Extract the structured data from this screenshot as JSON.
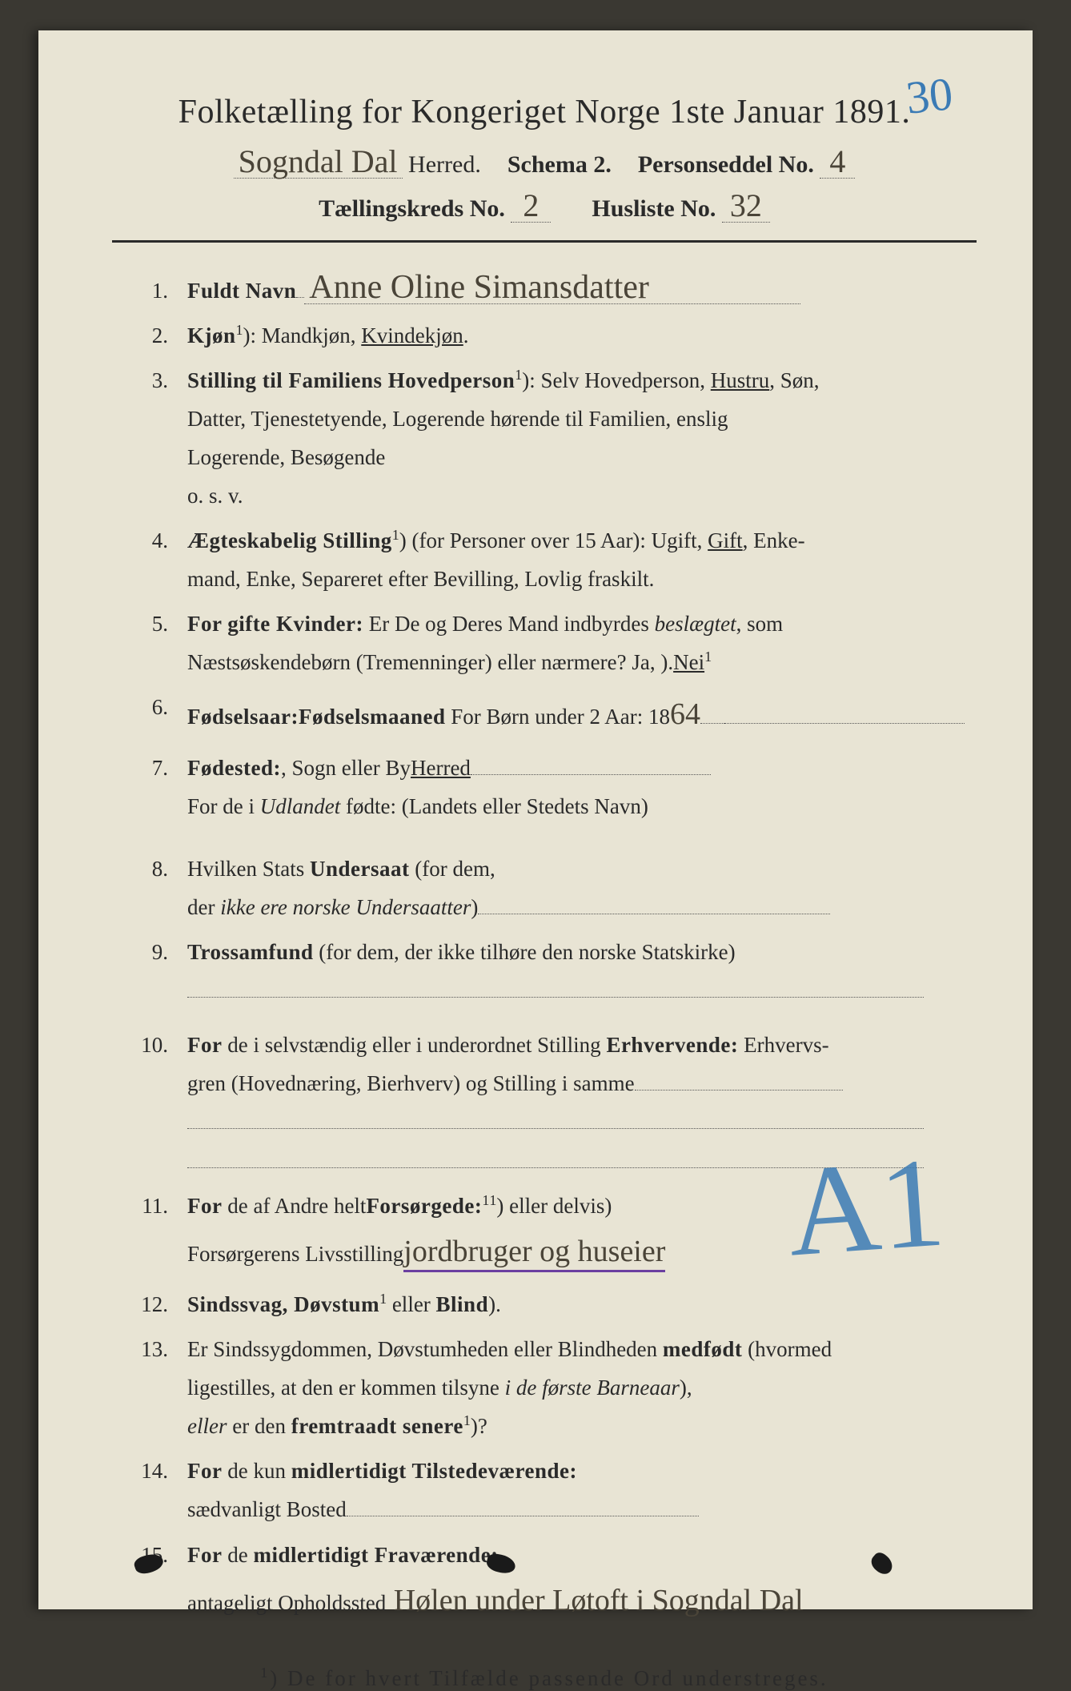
{
  "pageAnnotation": "30",
  "header": {
    "title": "Folketælling for Kongeriget Norge 1ste Januar 1891.",
    "herredName": "Sogndal Dal",
    "line2": {
      "herred": "Herred.",
      "schema": "Schema 2.",
      "personseddel": "Personseddel No.",
      "personseddelNo": "4"
    },
    "line3": {
      "kreds": "Tællingskreds No.",
      "kredsNo": "2",
      "husliste": "Husliste No.",
      "huslisteNo": "32"
    }
  },
  "items": [
    {
      "n": "1.",
      "label": "Fuldt Navn",
      "value": "Anne Oline Simansdatter"
    },
    {
      "n": "2.",
      "label": "Kjøn",
      "sup": "1",
      "tail": "): Mandkjøn, ",
      "underlined": "Kvindekjøn",
      "after": "."
    },
    {
      "n": "3.",
      "label": "Stilling til Familiens Hovedperson",
      "sup": "1",
      "tail": "): Selv Hovedperson, ",
      "underlined": "Hustru",
      "after": ", Søn,",
      "cont": [
        "Datter, Tjenestetyende, Logerende hørende til Familien, enslig",
        "Logerende, Besøgende",
        "o. s. v."
      ]
    },
    {
      "n": "4.",
      "label": "Ægteskabelig Stilling",
      "sup": "1",
      "tail": ") (for Personer over 15 Aar): Ugift, ",
      "underlined": "Gift",
      "after": ", Enke-",
      "cont": [
        "mand, Enke, Separeret efter Bevilling, Lovlig fraskilt."
      ]
    },
    {
      "n": "5.",
      "label_pre": "For ",
      "label": "gifte Kvinder:",
      "tail": " Er De og Deres Mand indbyrdes ",
      "italic": "beslægtet",
      "after": ", som",
      "cont_html": "Næstsøskendebørn (Tremenninger) eller nærmere?   Ja, ",
      "cont_under": "Nei",
      "cont_sup": "1",
      "cont_after": ")."
    },
    {
      "n": "6.",
      "label": "Fødselsaar:",
      "year_prefix": " 18",
      "year_hw": "64",
      "dotsA": true,
      "mid": "   For Børn under 2 Aar: ",
      "label2": "Fødselsmaaned",
      "trailingDots": true
    },
    {
      "n": "7.",
      "label": "Fødested:",
      "underlined": "Herred",
      "tail": ", Sogn eller By",
      "trailingDots": true,
      "cont_html": "For de i ",
      "cont_italic": "Udlandet",
      "cont_after": " fødte: (Landets eller Stedets Navn)"
    },
    {
      "n": "8.",
      "plain_pre": "Hvilken Stats ",
      "label": "Undersaat",
      "tail": "  (for dem,",
      "cont_html": "der ",
      "cont_italic": "ikke ere norske Undersaatter",
      "cont_after": ")",
      "cont_trailing_dots": true
    },
    {
      "n": "9.",
      "label": "Trossamfund",
      "tail": "  (for dem,  der  ikke  tilhøre  den  norske  Statskirke)",
      "trailingDotsBelow": true
    },
    {
      "n": "10.",
      "label_pre": "For ",
      "plain": "de i selvstændig eller i underordnet Stilling ",
      "label": "Erhvervende:",
      "tail": " Erhvervs-",
      "cont": [
        "gren (Hovednæring, Bierhverv) og Stilling i samme"
      ],
      "cont_trailing_dots": true,
      "extraDotsLines": 2
    },
    {
      "n": "11.",
      "label_pre": "For ",
      "plain": "de af Andre helt",
      "sup": "1",
      "mid": ") eller delvis",
      "sup2": "1",
      "tail": ") ",
      "label": "Forsørgede:",
      "cont_label": "Forsørgerens Livsstilling",
      "cont_hw": "jordbruger og huseier",
      "purple": true
    },
    {
      "n": "12.",
      "label": "Sindssvag, Døvstum",
      "plain_mid": " eller ",
      "label2": "Blind",
      "sup": "1",
      "after": ")."
    },
    {
      "n": "13.",
      "plain_pre": "Er Sindssygdommen, Døvstumheden eller Blindheden ",
      "label": "medfødt",
      "tail": " (hvormed",
      "cont_html": "ligestilles, at den er kommen tilsyne ",
      "cont_italic": "i de første Barneaar",
      "cont_after": "),",
      "cont2_italic": "eller",
      "cont2_mid": " er den ",
      "cont2_bold": "fremtraadt senere",
      "cont2_sup": "1",
      "cont2_after": ")?"
    },
    {
      "n": "14.",
      "label_pre": "For ",
      "plain": "de kun ",
      "label": "midlertidigt Tilstedeværende:",
      "cont_plain": "sædvanligt Bosted",
      "cont_trailing_dots": true
    },
    {
      "n": "15.",
      "label_pre": "For ",
      "plain": "de ",
      "label": "midlertidigt Fraværende:",
      "cont_plain": "antageligt Opholdssted",
      "cont_hw": " Hølen under Løtoft i Sogndal Dal"
    }
  ],
  "bigMark": "A1",
  "footnote": {
    "sup": "1",
    "text": ") De for hvert Tilfælde passende Ord understreges."
  }
}
